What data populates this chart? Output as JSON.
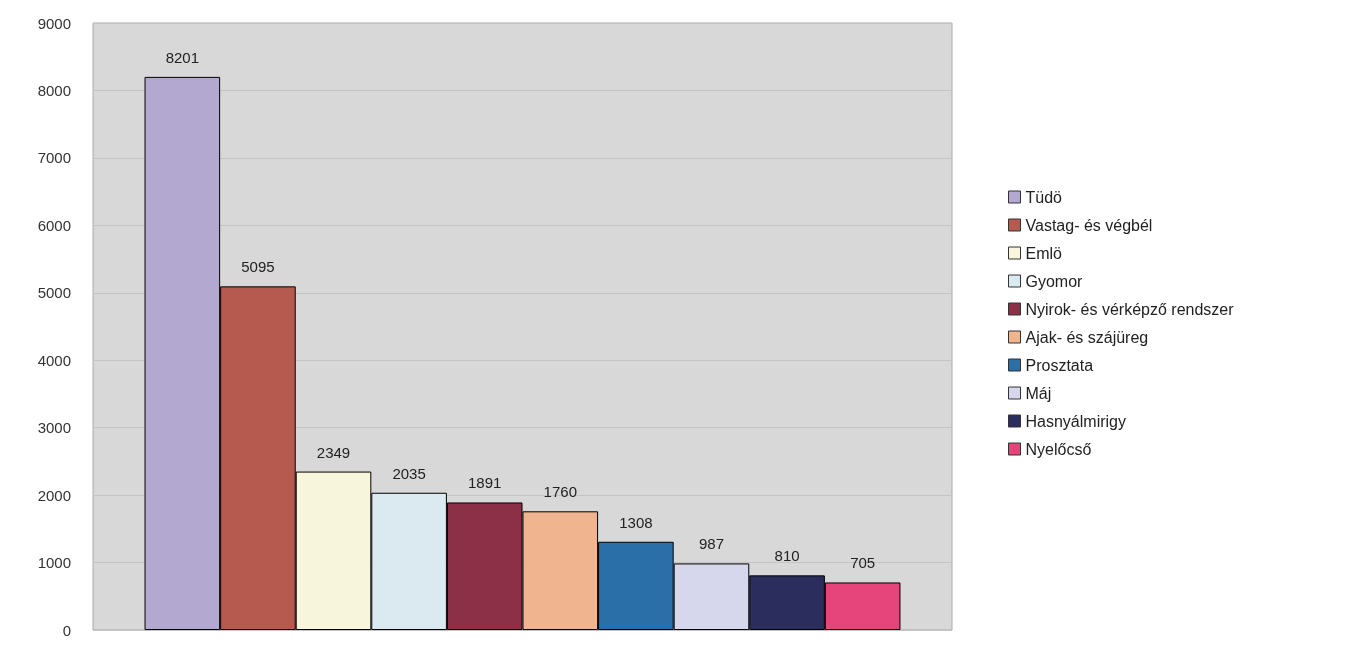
{
  "chart_data": {
    "type": "bar",
    "categories": [
      null
    ],
    "series": [
      {
        "name": "Tüdö",
        "color": "#b3a9d0",
        "values": [
          8201
        ]
      },
      {
        "name": "Vastag- és végbél",
        "color": "#b65a50",
        "values": [
          5095
        ]
      },
      {
        "name": "Emlö",
        "color": "#f7f5dc",
        "values": [
          2349
        ]
      },
      {
        "name": "Gyomor",
        "color": "#dbe9f0",
        "values": [
          2035
        ]
      },
      {
        "name": "Nyirok- és vérképző rendszer",
        "color": "#8b3046",
        "values": [
          1891
        ]
      },
      {
        "name": "Ajak- és szájüreg",
        "color": "#f0b48e",
        "values": [
          1760
        ]
      },
      {
        "name": "Prosztata",
        "color": "#2a6fa8",
        "values": [
          1308
        ]
      },
      {
        "name": "Máj",
        "color": "#d6d6ec",
        "values": [
          987
        ]
      },
      {
        "name": "Hasnyálmirigy",
        "color": "#2b2d5c",
        "values": [
          810
        ]
      },
      {
        "name": "Nyelőcső",
        "color": "#e5457a",
        "values": [
          705
        ]
      }
    ],
    "ylim": [
      0,
      9000
    ],
    "yticks": [
      0,
      1000,
      2000,
      3000,
      4000,
      5000,
      6000,
      7000,
      8000,
      9000
    ],
    "grid": "y",
    "legend": "right",
    "data_labels": true
  }
}
